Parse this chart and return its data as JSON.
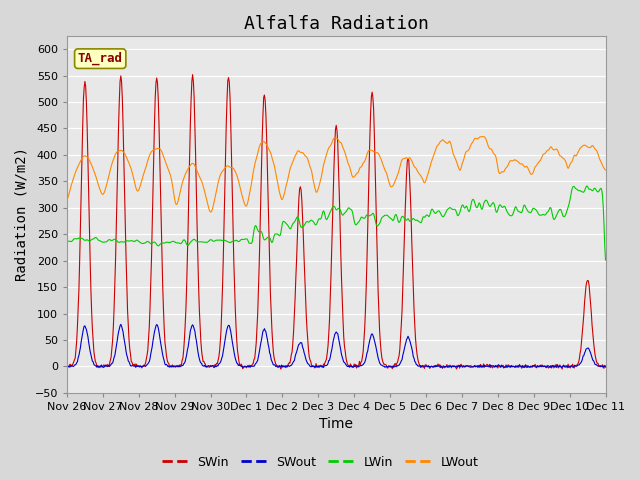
{
  "title": "Alfalfa Radiation",
  "xlabel": "Time",
  "ylabel": "Radiation (W/m2)",
  "ylim": [
    -50,
    625
  ],
  "yticks": [
    -50,
    0,
    50,
    100,
    150,
    200,
    250,
    300,
    350,
    400,
    450,
    500,
    550,
    600
  ],
  "annotation_text": "TA_rad",
  "annotation_color": "#880000",
  "annotation_bg": "#FFFFC0",
  "annotation_border": "#888800",
  "colors": {
    "SWin": "#CC0000",
    "SWout": "#0000CC",
    "LWin": "#00CC00",
    "LWout": "#FF8800"
  },
  "bg_color": "#D8D8D8",
  "plot_bg": "#E8E8E8",
  "xtick_labels": [
    "Nov 26",
    "Nov 27",
    "Nov 28",
    "Nov 29",
    "Nov 30",
    "Dec 1",
    "Dec 2",
    "Dec 3",
    "Dec 4",
    "Dec 5",
    "Dec 6",
    "Dec 7",
    "Dec 8",
    "Dec 9",
    "Dec 10",
    "Dec 11"
  ],
  "title_fontsize": 13,
  "axis_label_fontsize": 10,
  "tick_fontsize": 8,
  "figwidth": 6.4,
  "figheight": 4.8,
  "dpi": 100
}
